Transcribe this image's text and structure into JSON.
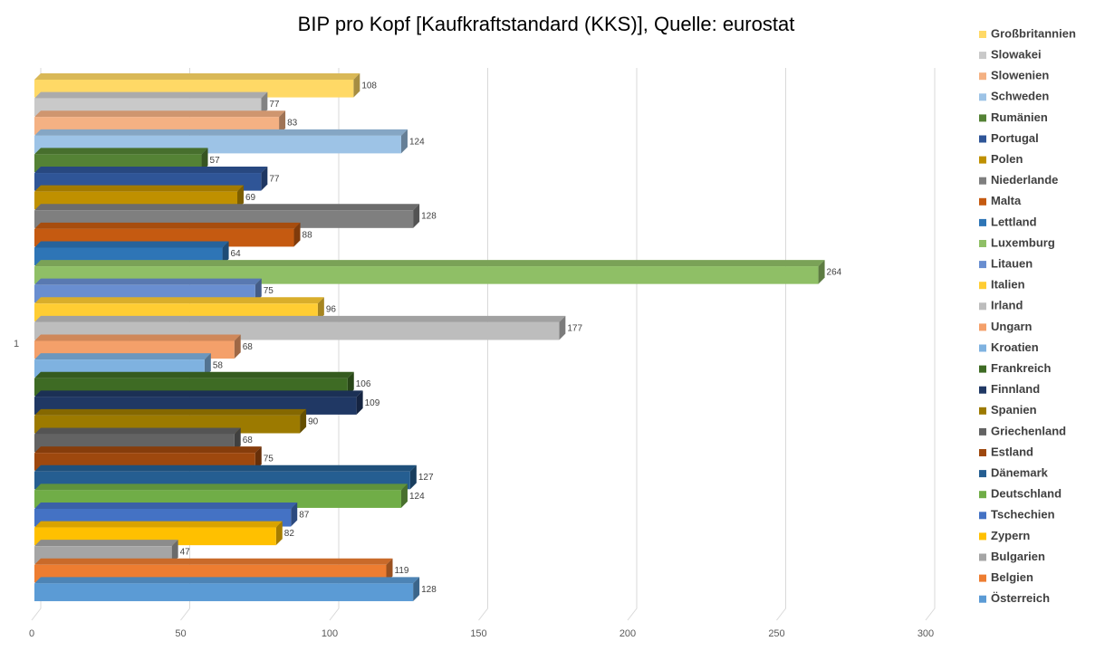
{
  "chart_data": {
    "type": "bar",
    "orientation": "horizontal",
    "3d": true,
    "title": "BIP pro Kopf [Kaufkraftstandard (KKS)], Quelle: eurostat",
    "categories": [
      "1"
    ],
    "xlim": [
      0,
      300
    ],
    "xticks": [
      0,
      50,
      100,
      150,
      200,
      250,
      300
    ],
    "grid": true,
    "legend": "right",
    "series": [
      {
        "name": "Großbritannien",
        "color": "#ffd966",
        "values": [
          108
        ]
      },
      {
        "name": "Slowakei",
        "color": "#c9c9c9",
        "values": [
          77
        ]
      },
      {
        "name": "Slowenien",
        "color": "#f4b183",
        "values": [
          83
        ]
      },
      {
        "name": "Schweden",
        "color": "#9dc3e6",
        "values": [
          124
        ]
      },
      {
        "name": "Rumänien",
        "color": "#548235",
        "values": [
          57
        ]
      },
      {
        "name": "Portugal",
        "color": "#2f5597",
        "values": [
          77
        ]
      },
      {
        "name": "Polen",
        "color": "#bf9000",
        "values": [
          69
        ]
      },
      {
        "name": "Niederlande",
        "color": "#7f7f7f",
        "values": [
          128
        ]
      },
      {
        "name": "Malta",
        "color": "#c55a11",
        "values": [
          88
        ]
      },
      {
        "name": "Lettland",
        "color": "#2e75b6",
        "values": [
          64
        ]
      },
      {
        "name": "Luxemburg",
        "color": "#8fbf66",
        "values": [
          264
        ]
      },
      {
        "name": "Litauen",
        "color": "#698ed0",
        "values": [
          75
        ]
      },
      {
        "name": "Italien",
        "color": "#ffcd33",
        "values": [
          96
        ]
      },
      {
        "name": "Irland",
        "color": "#bdbdbd",
        "values": [
          177
        ]
      },
      {
        "name": "Ungarn",
        "color": "#f4a06a",
        "values": [
          68
        ]
      },
      {
        "name": "Kroatien",
        "color": "#7fb2e0",
        "values": [
          58
        ]
      },
      {
        "name": "Frankreich",
        "color": "#3e6b24",
        "values": [
          106
        ]
      },
      {
        "name": "Finnland",
        "color": "#203864",
        "values": [
          109
        ]
      },
      {
        "name": "Spanien",
        "color": "#9c7a00",
        "values": [
          90
        ]
      },
      {
        "name": "Griechenland",
        "color": "#636363",
        "values": [
          68
        ]
      },
      {
        "name": "Estland",
        "color": "#9e480e",
        "values": [
          75
        ]
      },
      {
        "name": "Dänemark",
        "color": "#255e91",
        "values": [
          127
        ]
      },
      {
        "name": "Deutschland",
        "color": "#70ad47",
        "values": [
          124
        ]
      },
      {
        "name": "Tschechien",
        "color": "#4472c4",
        "values": [
          87
        ]
      },
      {
        "name": "Zypern",
        "color": "#ffc000",
        "values": [
          82
        ]
      },
      {
        "name": "Bulgarien",
        "color": "#a5a5a5",
        "values": [
          47
        ]
      },
      {
        "name": "Belgien",
        "color": "#ed7d31",
        "values": [
          119
        ]
      },
      {
        "name": "Österreich",
        "color": "#5b9bd5",
        "values": [
          128
        ]
      }
    ]
  }
}
